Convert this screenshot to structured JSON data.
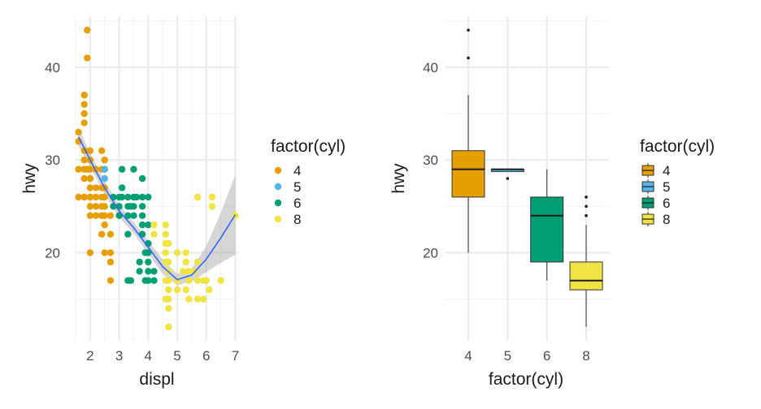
{
  "palette": {
    "4": "#E69F00",
    "5": "#56B4E9",
    "6": "#009E73",
    "8": "#F0E442"
  },
  "smooth_color": "#3366FF",
  "band_color": "#999999",
  "chart_data": [
    {
      "type": "scatter",
      "title": "",
      "xlabel": "displ",
      "ylabel": "hwy",
      "xlim": [
        1.5,
        7.1
      ],
      "ylim": [
        10.5,
        45.5
      ],
      "xticks": [
        2,
        3,
        4,
        5,
        6,
        7
      ],
      "yticks": [
        20,
        30,
        40
      ],
      "grid": true,
      "legend": {
        "title": "factor(cyl)",
        "position": "right",
        "entries": [
          "4",
          "5",
          "6",
          "8"
        ]
      },
      "series": [
        {
          "name": "4",
          "points": [
            [
              1.6,
              33
            ],
            [
              1.6,
              32
            ],
            [
              1.6,
              29
            ],
            [
              1.6,
              29
            ],
            [
              1.6,
              26
            ],
            [
              1.8,
              29
            ],
            [
              1.8,
              29
            ],
            [
              1.8,
              30
            ],
            [
              1.8,
              31
            ],
            [
              1.8,
              26
            ],
            [
              1.8,
              36
            ],
            [
              1.8,
              35
            ],
            [
              1.8,
              37
            ],
            [
              1.8,
              34
            ],
            [
              1.8,
              28
            ],
            [
              1.8,
              26
            ],
            [
              1.9,
              44
            ],
            [
              1.9,
              41
            ],
            [
              1.9,
              29
            ],
            [
              2,
              28
            ],
            [
              2,
              31
            ],
            [
              2,
              30
            ],
            [
              2,
              26
            ],
            [
              2,
              29
            ],
            [
              2,
              27
            ],
            [
              2,
              26
            ],
            [
              2,
              24
            ],
            [
              2,
              28
            ],
            [
              2,
              25
            ],
            [
              2,
              20
            ],
            [
              2.2,
              26
            ],
            [
              2.2,
              27
            ],
            [
              2.2,
              24
            ],
            [
              2.2,
              25
            ],
            [
              2.2,
              29
            ],
            [
              2.4,
              26
            ],
            [
              2.4,
              27
            ],
            [
              2.4,
              24
            ],
            [
              2.4,
              25
            ],
            [
              2.4,
              22
            ],
            [
              2.4,
              29
            ],
            [
              2.4,
              31
            ],
            [
              2.5,
              25
            ],
            [
              2.5,
              24
            ],
            [
              2.5,
              26
            ],
            [
              2.5,
              27
            ],
            [
              2.5,
              30
            ],
            [
              2.5,
              29
            ],
            [
              2.5,
              23
            ],
            [
              2.5,
              20
            ],
            [
              2.7,
              20
            ],
            [
              2.7,
              22
            ],
            [
              2.7,
              17
            ],
            [
              2.7,
              19
            ],
            [
              2.7,
              24
            ]
          ]
        },
        {
          "name": "5",
          "points": [
            [
              2.5,
              29
            ],
            [
              2.5,
              28
            ]
          ]
        },
        {
          "name": "6",
          "points": [
            [
              2.8,
              26
            ],
            [
              2.8,
              25
            ],
            [
              3.0,
              26
            ],
            [
              3.0,
              25
            ],
            [
              3.0,
              24
            ],
            [
              3.1,
              27
            ],
            [
              3.1,
              26
            ],
            [
              3.1,
              29
            ],
            [
              3.3,
              17
            ],
            [
              3.3,
              24
            ],
            [
              3.3,
              22
            ],
            [
              3.3,
              25
            ],
            [
              3.3,
              26
            ],
            [
              3.4,
              17
            ],
            [
              3.4,
              25
            ],
            [
              3.5,
              29
            ],
            [
              3.5,
              26
            ],
            [
              3.5,
              25
            ],
            [
              3.5,
              24
            ],
            [
              3.6,
              26
            ],
            [
              3.7,
              18
            ],
            [
              3.7,
              19
            ],
            [
              3.8,
              24
            ],
            [
              3.8,
              26
            ],
            [
              3.8,
              28
            ],
            [
              3.8,
              25
            ],
            [
              3.8,
              22
            ],
            [
              3.8,
              23
            ],
            [
              3.9,
              20
            ],
            [
              3.9,
              17
            ],
            [
              4.0,
              17
            ],
            [
              4.0,
              19
            ],
            [
              4.0,
              18
            ],
            [
              4.0,
              21
            ],
            [
              4.0,
              23
            ],
            [
              4.0,
              26
            ],
            [
              4.0,
              20
            ],
            [
              4.2,
              18
            ],
            [
              4.2,
              17
            ]
          ]
        },
        {
          "name": "8",
          "points": [
            [
              4.2,
              22
            ],
            [
              4.2,
              23
            ],
            [
              4.6,
              17
            ],
            [
              4.6,
              15
            ],
            [
              4.6,
              20
            ],
            [
              4.6,
              19
            ],
            [
              4.6,
              21
            ],
            [
              4.6,
              22
            ],
            [
              4.6,
              23
            ],
            [
              4.7,
              17
            ],
            [
              4.7,
              19
            ],
            [
              4.7,
              16
            ],
            [
              4.7,
              12
            ],
            [
              4.7,
              18
            ],
            [
              4.7,
              15
            ],
            [
              4.7,
              21
            ],
            [
              4.7,
              14
            ],
            [
              5.0,
              16
            ],
            [
              5.0,
              20
            ],
            [
              5.0,
              17
            ],
            [
              5.2,
              18
            ],
            [
              5.3,
              16
            ],
            [
              5.3,
              19
            ],
            [
              5.3,
              20
            ],
            [
              5.4,
              18
            ],
            [
              5.4,
              17
            ],
            [
              5.4,
              15
            ],
            [
              5.6,
              18
            ],
            [
              5.7,
              15
            ],
            [
              5.7,
              17
            ],
            [
              5.7,
              19
            ],
            [
              5.7,
              26
            ],
            [
              5.9,
              17
            ],
            [
              5.9,
              15
            ],
            [
              6.0,
              17
            ],
            [
              6.1,
              16
            ],
            [
              6.2,
              25
            ],
            [
              6.2,
              26
            ],
            [
              6.5,
              17
            ],
            [
              7.0,
              24
            ]
          ]
        }
      ],
      "smooth": {
        "x": [
          1.6,
          2.0,
          2.5,
          3.0,
          3.5,
          4.0,
          4.5,
          5.0,
          5.5,
          6.0,
          6.5,
          7.0
        ],
        "y": [
          32.5,
          30.0,
          27.0,
          24.5,
          22.7,
          20.6,
          18.5,
          17.1,
          17.6,
          19.3,
          21.6,
          24.1
        ],
        "lower": [
          31.5,
          29.3,
          26.3,
          23.8,
          22.1,
          19.9,
          17.7,
          16.5,
          16.9,
          17.9,
          18.9,
          19.8
        ],
        "upper": [
          33.5,
          30.7,
          27.7,
          25.2,
          23.3,
          21.3,
          19.3,
          17.7,
          18.3,
          20.7,
          24.3,
          28.4
        ]
      }
    },
    {
      "type": "box",
      "title": "",
      "xlabel": "factor(cyl)",
      "ylabel": "hwy",
      "categories": [
        "4",
        "5",
        "6",
        "8"
      ],
      "ylim": [
        10.5,
        45.5
      ],
      "yticks": [
        20,
        30,
        40
      ],
      "grid": true,
      "legend": {
        "title": "factor(cyl)",
        "position": "right",
        "entries": [
          "4",
          "5",
          "6",
          "8"
        ]
      },
      "boxes": [
        {
          "category": "4",
          "q1": 26,
          "median": 29,
          "q3": 31,
          "whisker_low": 20,
          "whisker_high": 37,
          "outliers": [
            44,
            41
          ]
        },
        {
          "category": "5",
          "q1": 28.75,
          "median": 29,
          "q3": 29,
          "whisker_low": 28.75,
          "whisker_high": 29,
          "outliers": [
            28
          ]
        },
        {
          "category": "6",
          "q1": 19,
          "median": 24,
          "q3": 26,
          "whisker_low": 17,
          "whisker_high": 29,
          "outliers": []
        },
        {
          "category": "8",
          "q1": 16,
          "median": 17,
          "q3": 19,
          "whisker_low": 12,
          "whisker_high": 23,
          "outliers": [
            26,
            25,
            24
          ]
        }
      ]
    }
  ]
}
